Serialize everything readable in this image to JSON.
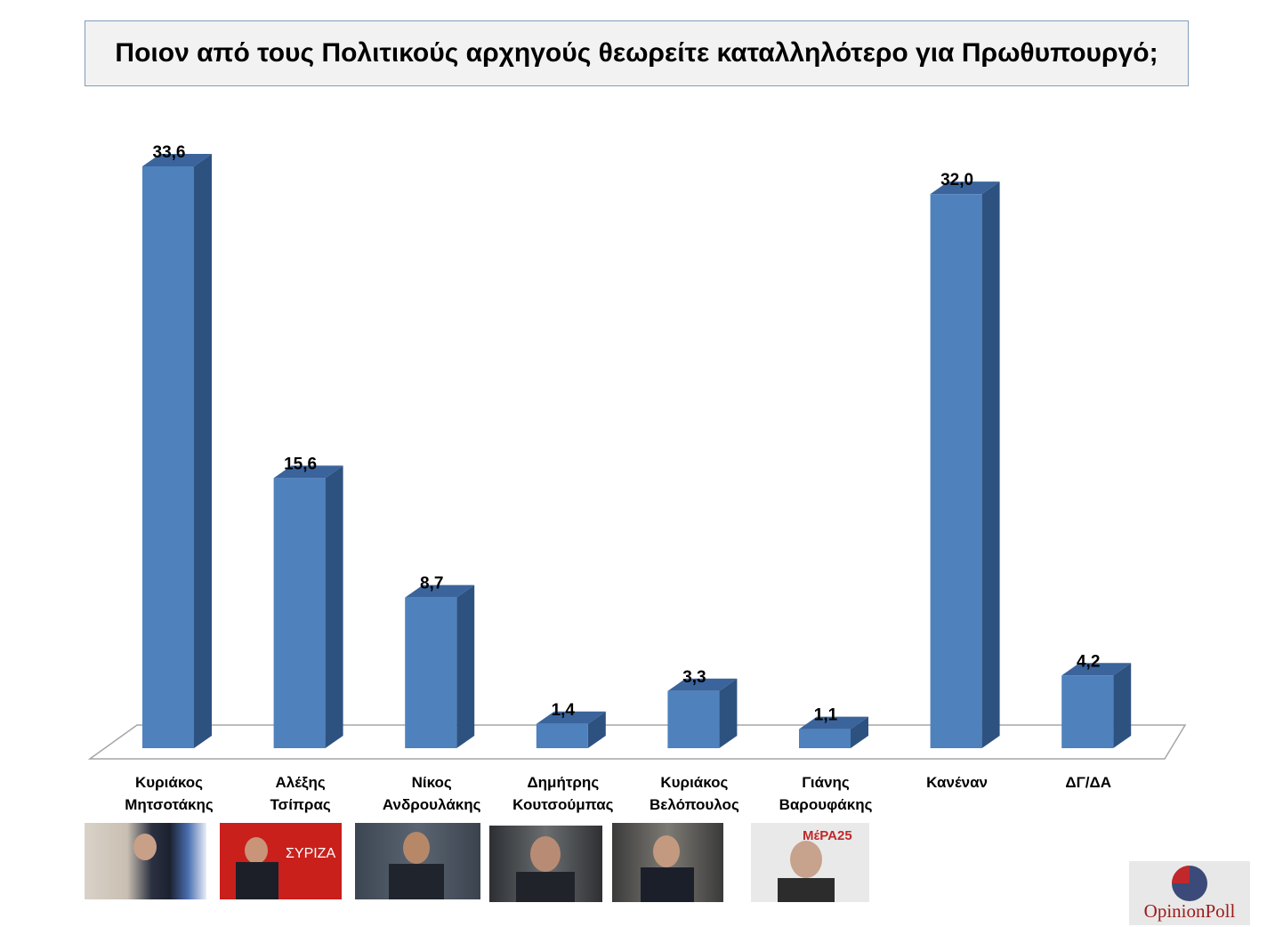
{
  "chart_data": {
    "type": "bar",
    "title": "Ποιον από τους Πολιτικούς αρχηγούς θεωρείτε καταλληλότερο για Πρωθυπουργό;",
    "categories": [
      "Κυριάκος\nΜητσοτάκης",
      "Αλέξης\nΤσίπρας",
      "Νίκος\nΑνδρουλάκης",
      "Δημήτρης\nΚουτσούμπας",
      "Κυριάκος\nΒελόπουλος",
      "Γιάνης\nΒαρουφάκης",
      "Κανέναν",
      "ΔΓ/ΔΑ"
    ],
    "values": [
      33.6,
      15.6,
      8.7,
      1.4,
      3.3,
      1.1,
      32.0,
      4.2
    ],
    "value_labels": [
      "33,6",
      "15,6",
      "8,7",
      "1,4",
      "3,3",
      "1,1",
      "32,0",
      "4,2"
    ],
    "ylim": [
      0,
      33.6
    ],
    "grid": false,
    "legend": "none",
    "colors": {
      "bar_front": "#4f81bd",
      "bar_side": "#2e5280",
      "bar_top": "#3a649b"
    }
  },
  "logo": {
    "text": "OpinionPoll",
    "accent": "#a52a2a",
    "circle": "#3b4a78"
  }
}
